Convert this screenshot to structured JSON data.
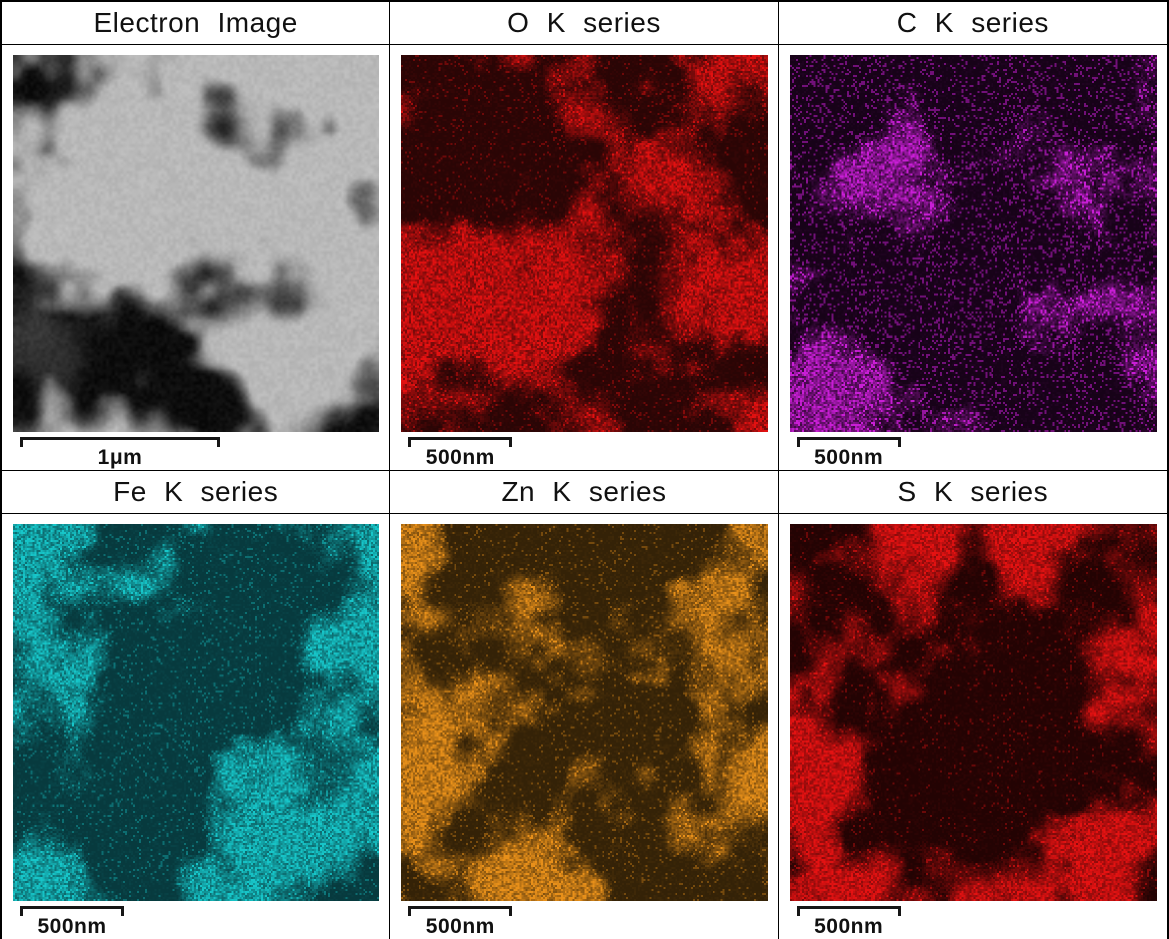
{
  "figure": {
    "panels": [
      {
        "id": "electron",
        "title": "Electron Image",
        "scale_label": "1μm",
        "type": "electron",
        "map_color": "#0d0d0d",
        "background_color": "#b9b9b9",
        "highlight_color": "#e6e6e6"
      },
      {
        "id": "o",
        "title": "O K series",
        "scale_label": "500nm",
        "type": "map",
        "map_color": "#e31111",
        "background_color": "#2a0505"
      },
      {
        "id": "c",
        "title": "C K series",
        "scale_label": "500nm",
        "type": "map",
        "map_color": "#c91ed6",
        "background_color": "#170218"
      },
      {
        "id": "fe",
        "title": "Fe K series",
        "scale_label": "500nm",
        "type": "map",
        "map_color": "#17c6c9",
        "background_color": "#073a3e"
      },
      {
        "id": "zn",
        "title": "Zn K series",
        "scale_label": "500nm",
        "type": "map",
        "map_color": "#e8901a",
        "background_color": "#342207"
      },
      {
        "id": "s",
        "title": "S K series",
        "scale_label": "500nm",
        "type": "map",
        "map_color": "#e51212",
        "background_color": "#230303"
      }
    ]
  }
}
